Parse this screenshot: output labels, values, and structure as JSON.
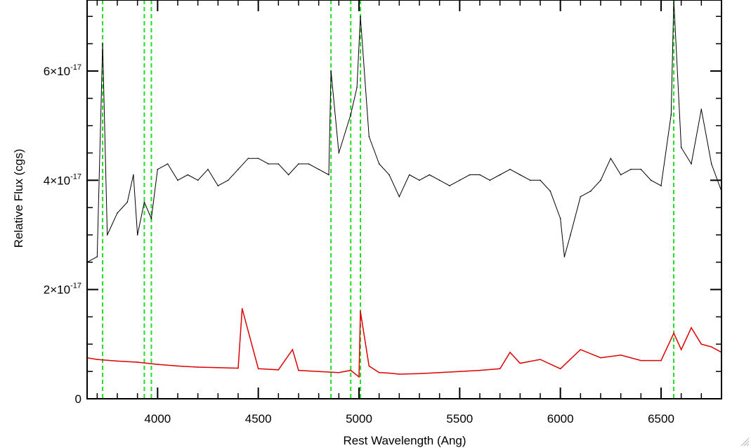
{
  "chart_data": {
    "type": "line",
    "title": "",
    "xlabel": "Rest Wavelength (Ang)",
    "ylabel": "Relative Flux (cgs)",
    "xlim": [
      3650,
      6800
    ],
    "ylim": [
      0,
      7.3e-17
    ],
    "x_ticks": [
      {
        "value": 4000,
        "label": "4000"
      },
      {
        "value": 4500,
        "label": "4500"
      },
      {
        "value": 5000,
        "label": "5000"
      },
      {
        "value": 5500,
        "label": "5500"
      },
      {
        "value": 6000,
        "label": "6000"
      },
      {
        "value": 6500,
        "label": "6500"
      }
    ],
    "y_ticks": [
      {
        "value": 0,
        "base": "0",
        "exp": ""
      },
      {
        "value": 2e-17,
        "base": "2×10",
        "exp": "-17"
      },
      {
        "value": 4e-17,
        "base": "4×10",
        "exp": "-17"
      },
      {
        "value": 6e-17,
        "base": "6×10",
        "exp": "-17"
      }
    ],
    "x_minor_step": 100,
    "y_minor_step": 5e-18,
    "grid": false,
    "vertical_lines": [
      3727,
      3934,
      3969,
      4861,
      4959,
      5007,
      6563
    ],
    "series": [
      {
        "color": "#000000",
        "style": "solid",
        "x": [
          3650,
          3700,
          3727,
          3750,
          3800,
          3850,
          3880,
          3900,
          3934,
          3969,
          4000,
          4050,
          4100,
          4150,
          4200,
          4250,
          4300,
          4350,
          4400,
          4450,
          4500,
          4550,
          4600,
          4650,
          4700,
          4750,
          4800,
          4850,
          4861,
          4900,
          4959,
          4990,
          5007,
          5050,
          5100,
          5150,
          5200,
          5250,
          5300,
          5350,
          5400,
          5450,
          5500,
          5550,
          5600,
          5650,
          5700,
          5750,
          5800,
          5850,
          5900,
          5950,
          6000,
          6020,
          6050,
          6100,
          6150,
          6200,
          6250,
          6300,
          6350,
          6400,
          6450,
          6500,
          6550,
          6563,
          6600,
          6650,
          6700,
          6750,
          6800
        ],
        "y": [
          2.5e-17,
          2.6e-17,
          6.5e-17,
          3e-17,
          3.4e-17,
          3.6e-17,
          4.1e-17,
          3e-17,
          3.6e-17,
          3.3e-17,
          4.2e-17,
          4.3e-17,
          4e-17,
          4.1e-17,
          4e-17,
          4.2e-17,
          3.9e-17,
          4e-17,
          4.2e-17,
          4.4e-17,
          4.4e-17,
          4.3e-17,
          4.3e-17,
          4.1e-17,
          4.3e-17,
          4.3e-17,
          4.2e-17,
          4.1e-17,
          6e-17,
          4.5e-17,
          5.2e-17,
          5.7e-17,
          7e-17,
          4.8e-17,
          4.3e-17,
          4.1e-17,
          3.7e-17,
          4.1e-17,
          4e-17,
          4.1e-17,
          4e-17,
          3.9e-17,
          4e-17,
          4.1e-17,
          4.1e-17,
          4e-17,
          4.1e-17,
          4.2e-17,
          4.1e-17,
          4e-17,
          4e-17,
          3.8e-17,
          3.3e-17,
          2.6e-17,
          3e-17,
          3.7e-17,
          3.8e-17,
          4e-17,
          4.4e-17,
          4.1e-17,
          4.2e-17,
          4.2e-17,
          4e-17,
          3.9e-17,
          5.2e-17,
          7.3e-17,
          4.6e-17,
          4.3e-17,
          5.3e-17,
          4.3e-17,
          3.8e-17
        ]
      },
      {
        "color": "#dd0000",
        "style": "solid",
        "x": [
          3650,
          3700,
          3800,
          3900,
          4000,
          4100,
          4200,
          4300,
          4400,
          4420,
          4500,
          4600,
          4670,
          4700,
          4800,
          4900,
          4959,
          5000,
          5007,
          5050,
          5100,
          5150,
          5200,
          5300,
          5400,
          5500,
          5600,
          5700,
          5750,
          5800,
          5900,
          6000,
          6100,
          6200,
          6300,
          6400,
          6500,
          6563,
          6600,
          6650,
          6700,
          6750,
          6800
        ],
        "y": [
          7.5e-18,
          7.2e-18,
          6.9e-18,
          6.7e-18,
          6.3e-18,
          6e-18,
          5.8e-18,
          5.7e-18,
          5.6e-18,
          1.65e-17,
          5.5e-18,
          5.3e-18,
          9e-18,
          5.2e-18,
          5e-18,
          4.8e-18,
          5.2e-18,
          4e-18,
          1.6e-17,
          6e-18,
          4.8e-18,
          4.7e-18,
          4.5e-18,
          4.6e-18,
          4.8e-18,
          5e-18,
          5.2e-18,
          5.5e-18,
          8.5e-18,
          6.5e-18,
          7.2e-18,
          5.5e-18,
          9e-18,
          7.5e-18,
          8e-18,
          7e-18,
          7e-18,
          1.2e-17,
          9e-18,
          1.3e-17,
          1e-17,
          9.5e-18,
          8.5e-18
        ]
      }
    ]
  }
}
